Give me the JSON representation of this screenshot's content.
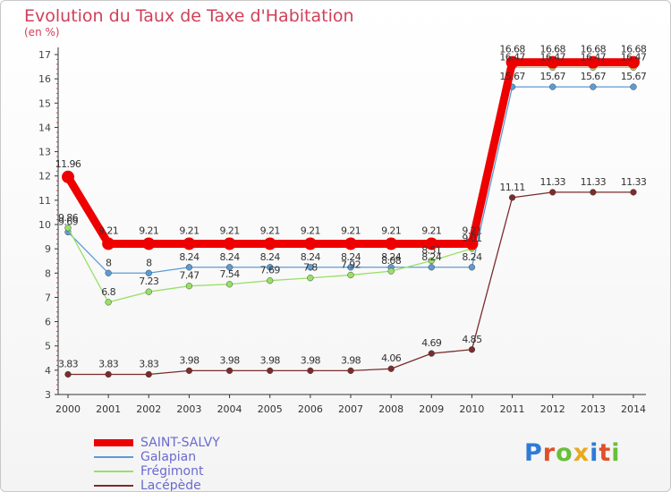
{
  "title": "Evolution du Taux de Taxe d'Habitation",
  "unit_label": "(en %)",
  "logo_text": "Proxiti",
  "chart_data": {
    "type": "line",
    "x": [
      "2000",
      "2001",
      "2002",
      "2003",
      "2004",
      "2005",
      "2006",
      "2007",
      "2008",
      "2009",
      "2010",
      "2011",
      "2012",
      "2013",
      "2014"
    ],
    "ylim": [
      3,
      17
    ],
    "yticks": [
      3,
      4,
      5,
      6,
      7,
      8,
      9,
      10,
      11,
      12,
      13,
      14,
      15,
      16,
      17
    ],
    "grid": false,
    "legend_position": "bottom-left",
    "series": [
      {
        "name": "SAINT-SALVY",
        "color": "#ee0000",
        "values": [
          11.96,
          9.21,
          9.21,
          9.21,
          9.21,
          9.21,
          9.21,
          9.21,
          9.21,
          9.21,
          9.21,
          16.68,
          16.68,
          16.68,
          16.68
        ],
        "labels": [
          "11.96",
          "9.21",
          "9.21",
          "9.21",
          "9.21",
          "9.21",
          "9.21",
          "9.21",
          "9.21",
          "9.21",
          "9.21",
          "16.68",
          "16.68",
          "16.68",
          "16.68"
        ]
      },
      {
        "name": "Galapian",
        "color": "#5b9bd5",
        "values": [
          9.69,
          8,
          8,
          8.24,
          8.24,
          8.24,
          8.24,
          8.24,
          8.24,
          8.24,
          8.24,
          15.67,
          15.67,
          15.67,
          15.67
        ],
        "labels": [
          "9.69",
          "8",
          "8",
          "8.24",
          "8.24",
          "8.24",
          "8.24",
          "8.24",
          "8.24",
          "8.24",
          "8.24",
          "15.67",
          "15.67",
          "15.67",
          "15.67"
        ]
      },
      {
        "name": "Frégimont",
        "color": "#99e066",
        "values": [
          9.86,
          6.8,
          7.23,
          7.47,
          7.54,
          7.69,
          7.8,
          7.92,
          8.08,
          8.51,
          9.01,
          16.47,
          16.47,
          16.47,
          16.47
        ],
        "labels": [
          "9.86",
          "6.8",
          "7.23",
          "7.47",
          "7.54",
          "7.69",
          "7.8",
          "7.92",
          "8.08",
          "8.51",
          "9.01",
          "16.47",
          "16.47",
          "16.47",
          "16.47"
        ]
      },
      {
        "name": "Lacépède",
        "color": "#7b2c2c",
        "values": [
          3.83,
          3.83,
          3.83,
          3.98,
          3.98,
          3.98,
          3.98,
          3.98,
          4.06,
          4.69,
          4.85,
          11.11,
          11.33,
          11.33,
          11.33
        ],
        "labels": [
          "3.83",
          "3.83",
          "3.83",
          "3.98",
          "3.98",
          "3.98",
          "3.98",
          "3.98",
          "4.06",
          "4.69",
          "4.85",
          "11.11",
          "11.33",
          "11.33",
          "11.33"
        ]
      }
    ]
  }
}
